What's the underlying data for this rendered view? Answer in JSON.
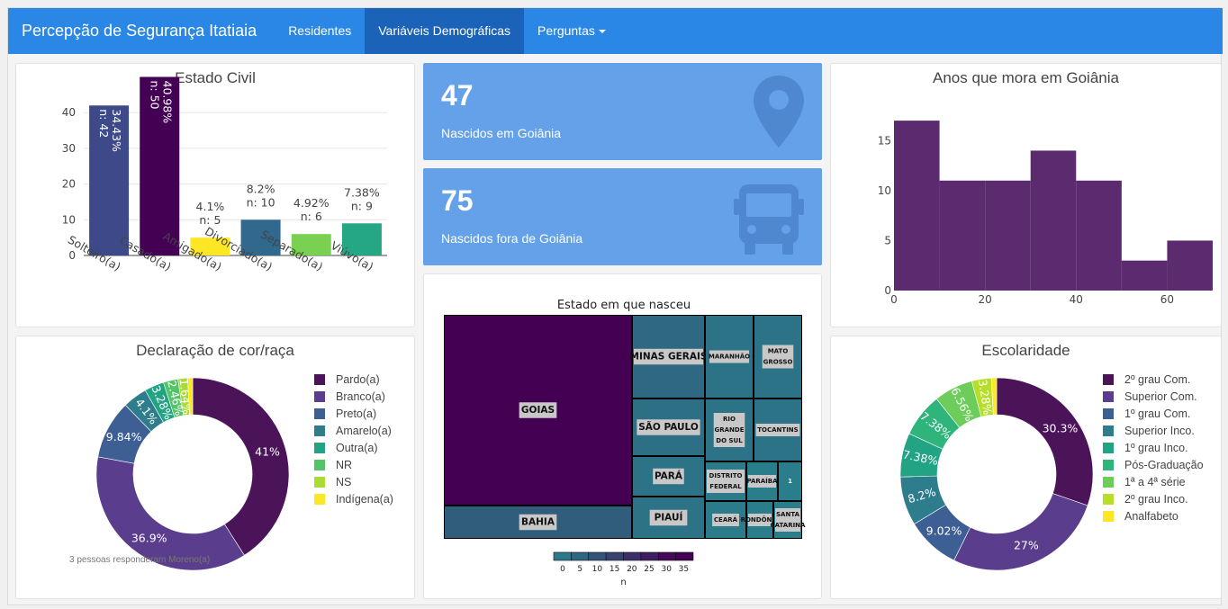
{
  "navbar": {
    "brand": "Percepção de Segurança Itatiaia",
    "items": [
      "Residentes",
      "Variáveis Demográficas",
      "Perguntas"
    ],
    "active_index": 1
  },
  "value_boxes": [
    {
      "value": "47",
      "label": "Nascidos em Goiânia",
      "icon": "map-marker-icon"
    },
    {
      "value": "75",
      "label": "Nascidos fora de Goiânia",
      "icon": "bus-icon"
    }
  ],
  "notes": {
    "moreno": "3 pessoas responderam Moreno(a)"
  },
  "chart_data": [
    {
      "id": "estado_civil",
      "type": "bar",
      "title": "Estado Civil",
      "categories": [
        "Solteiro(a)",
        "Casado(a)",
        "Amigado(a)",
        "Divorciado(a)",
        "Separado(a)",
        "Viúvo(a)"
      ],
      "values": [
        42,
        50,
        5,
        10,
        6,
        9
      ],
      "labels": [
        "34.43%\nn: 42",
        "40.98%\nn: 50",
        "4.1%\nn: 5",
        "8.2%\nn: 10",
        "4.92%\nn: 6",
        "7.38%\nn: 9"
      ],
      "colors": [
        "#3e4989",
        "#440154",
        "#fde725",
        "#31688e",
        "#7ad151",
        "#26a784"
      ],
      "yticks": [
        0,
        10,
        20,
        30,
        40
      ],
      "ylim": [
        0,
        52
      ]
    },
    {
      "id": "anos_goiania",
      "type": "bar",
      "title": "Anos que mora em Goiânia",
      "bins": [
        [
          0,
          10
        ],
        [
          10,
          20
        ],
        [
          20,
          30
        ],
        [
          30,
          40
        ],
        [
          40,
          50
        ],
        [
          50,
          60
        ],
        [
          60,
          70
        ]
      ],
      "values": [
        17,
        11,
        11,
        14,
        11,
        3,
        5
      ],
      "color": "#5c2a6e",
      "xticks": [
        0,
        20,
        40,
        60
      ],
      "yticks": [
        0,
        5,
        10,
        15
      ],
      "xlim": [
        0,
        70
      ],
      "ylim": [
        0,
        18
      ]
    },
    {
      "id": "cor_raca",
      "type": "pie",
      "title": "Declaração de cor/raça",
      "labels": [
        "Pardo(a)",
        "Branco(a)",
        "Preto(a)",
        "Amarelo(a)",
        "Outra(a)",
        "NR",
        "NS",
        "Indígena(a)"
      ],
      "values": [
        41,
        36.9,
        9.84,
        4.1,
        3.28,
        2.46,
        1.64,
        0.82
      ],
      "slice_labels": [
        "41%",
        "36.9%",
        "9.84%",
        "4.1%",
        "3.28%",
        "2.46%",
        "1.64%",
        ""
      ],
      "colors": [
        "#4b1459",
        "#5a3e8d",
        "#3e5f93",
        "#2d7d8c",
        "#22a384",
        "#53c568",
        "#a8db34",
        "#fde725"
      ]
    },
    {
      "id": "escolaridade",
      "type": "pie",
      "title": "Escolaridade",
      "labels": [
        "2º grau Com.",
        "Superior Com.",
        "1º grau Com.",
        "Superior Inco.",
        "1º grau Inco.",
        "Pós-Graduação",
        "1ª a 4ª série",
        "2º grau Inco.",
        "Analfabeto"
      ],
      "values": [
        30.3,
        27,
        9.02,
        8.2,
        7.38,
        7.38,
        6.56,
        3.28,
        0.88
      ],
      "slice_labels": [
        "30.3%",
        "27%",
        "9.02%",
        "8.2%",
        "7.38%",
        "7.38%",
        "6.56%",
        "3.28%",
        ""
      ],
      "colors": [
        "#4b1459",
        "#5a3e8d",
        "#3e5f93",
        "#2d7d8c",
        "#22a384",
        "#2fb47c",
        "#6ccd5a",
        "#b6de2b",
        "#fde725"
      ]
    },
    {
      "id": "estado_nasceu",
      "type": "heatmap",
      "title": "Estado em que nasceu",
      "tiles": [
        {
          "name": "GOIAS",
          "n": 47
        },
        {
          "name": "BAHIA",
          "n": 10
        },
        {
          "name": "MINAS GERAIS",
          "n": 7
        },
        {
          "name": "MARANHÃO",
          "n": 4
        },
        {
          "name": "MATO GROSSO",
          "n": 4
        },
        {
          "name": "SÃO PAULO",
          "n": 5
        },
        {
          "name": "RIO GRANDE DO SUL",
          "n": 4
        },
        {
          "name": "TOCANTINS",
          "n": 4
        },
        {
          "name": "PARÁ",
          "n": 4
        },
        {
          "name": "PIAUÍ",
          "n": 4
        },
        {
          "name": "DISTRITO FEDERAL",
          "n": 2
        },
        {
          "name": "PARAÍBA",
          "n": 1
        },
        {
          "name": "1",
          "n": 1
        },
        {
          "name": "CEARÁ",
          "n": 2
        },
        {
          "name": "RONDÔNIA",
          "n": 1
        },
        {
          "name": "SANTA CATARINA",
          "n": 1
        }
      ],
      "legend_title": "n",
      "legend_ticks": [
        0,
        5,
        10,
        15,
        20,
        25,
        30,
        35
      ]
    }
  ]
}
